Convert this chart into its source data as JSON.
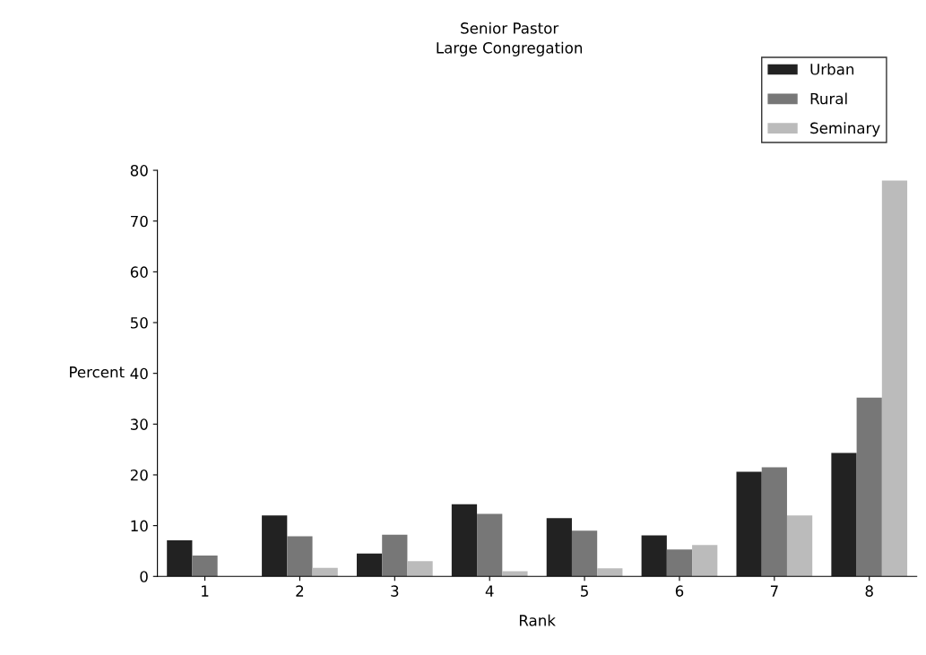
{
  "chart_data": {
    "type": "bar",
    "title": "Senior Pastor",
    "subtitle": "Large Congregation",
    "xlabel": "Rank",
    "ylabel": "Percent",
    "categories": [
      "1",
      "2",
      "3",
      "4",
      "5",
      "6",
      "7",
      "8"
    ],
    "series": [
      {
        "name": "Urban",
        "color": "#222222",
        "values": [
          7.1,
          12.0,
          4.5,
          14.2,
          11.5,
          8.1,
          20.6,
          24.3
        ]
      },
      {
        "name": "Rural",
        "color": "#777777",
        "values": [
          4.1,
          7.9,
          8.2,
          12.3,
          9.0,
          5.3,
          21.5,
          35.2
        ]
      },
      {
        "name": "Seminary",
        "color": "#bbbbbb",
        "values": [
          0,
          1.7,
          3.0,
          1.0,
          1.6,
          6.2,
          12.0,
          78.0
        ]
      }
    ],
    "ylim": [
      0,
      80
    ],
    "yticks": [
      0,
      10,
      20,
      30,
      40,
      50,
      60,
      70,
      80
    ],
    "grid": false,
    "legend": "top right"
  }
}
